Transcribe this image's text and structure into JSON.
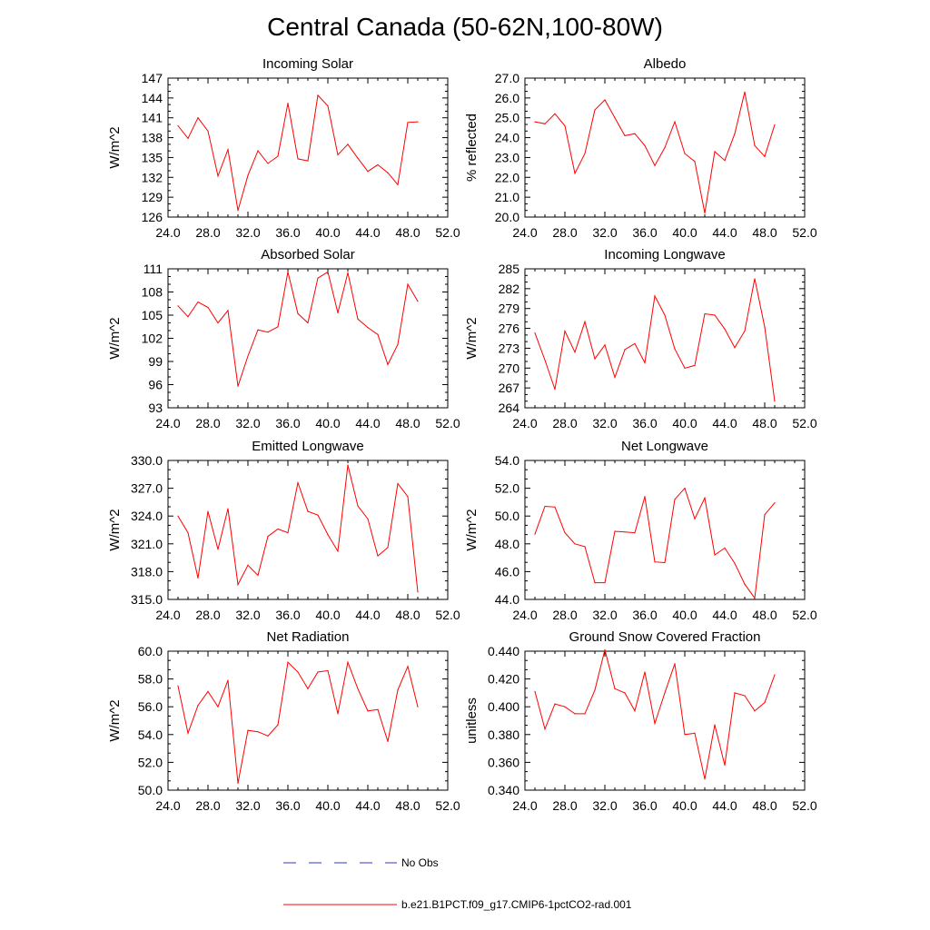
{
  "title": "Central Canada (50-62N,100-80W)",
  "legend": [
    {
      "label": "No Obs",
      "color": "#3333cc",
      "style": "dashed"
    },
    {
      "label": "b.e21.B1PCT.f09_g17.CMIP6-1pctCO2-rad.001",
      "color": "#ff0000",
      "style": "solid"
    }
  ],
  "chart_data": [
    {
      "type": "line",
      "title": "Incoming Solar",
      "ylabel": "W/m^2",
      "xlim": [
        24,
        52
      ],
      "ylim": [
        126,
        147
      ],
      "xticks": [
        "24.0",
        "28.0",
        "32.0",
        "36.0",
        "40.0",
        "44.0",
        "48.0",
        "52.0"
      ],
      "yticks": [
        "126",
        "129",
        "132",
        "135",
        "138",
        "141",
        "144",
        "147"
      ],
      "series": [
        {
          "color": "#ff0000",
          "x": [
            25,
            26,
            27,
            28,
            29,
            30,
            31,
            32,
            33,
            34,
            35,
            36,
            37,
            38,
            39,
            40,
            41,
            42,
            43,
            44,
            45,
            46,
            47,
            48,
            49
          ],
          "y": [
            139.8,
            137.9,
            141.0,
            139.0,
            132.2,
            136.2,
            127.0,
            132.3,
            136.0,
            134.1,
            135.2,
            143.2,
            134.8,
            134.5,
            144.4,
            142.8,
            135.4,
            137.0,
            134.9,
            132.9,
            133.9,
            132.7,
            130.9,
            140.3,
            140.4
          ]
        }
      ]
    },
    {
      "type": "line",
      "title": "Albedo",
      "ylabel": "% reflected",
      "xlim": [
        24,
        52
      ],
      "ylim": [
        20,
        27
      ],
      "xticks": [
        "24.0",
        "28.0",
        "32.0",
        "36.0",
        "40.0",
        "44.0",
        "48.0",
        "52.0"
      ],
      "yticks": [
        "20.0",
        "21.0",
        "22.0",
        "23.0",
        "24.0",
        "25.0",
        "26.0",
        "27.0"
      ],
      "series": [
        {
          "color": "#ff0000",
          "x": [
            25,
            26,
            27,
            28,
            29,
            30,
            31,
            32,
            33,
            34,
            35,
            36,
            37,
            38,
            39,
            40,
            41,
            42,
            43,
            44,
            45,
            46,
            47,
            48,
            49
          ],
          "y": [
            24.8,
            24.7,
            25.2,
            24.6,
            22.2,
            23.2,
            25.4,
            25.9,
            25.0,
            24.1,
            24.2,
            23.6,
            22.6,
            23.5,
            24.8,
            23.2,
            22.8,
            20.2,
            23.3,
            22.85,
            24.2,
            26.3,
            23.6,
            23.05,
            24.65
          ]
        }
      ]
    },
    {
      "type": "line",
      "title": "Absorbed Solar",
      "ylabel": "W/m^2",
      "xlim": [
        24,
        52
      ],
      "ylim": [
        93,
        111
      ],
      "xticks": [
        "24.0",
        "28.0",
        "32.0",
        "36.0",
        "40.0",
        "44.0",
        "48.0",
        "52.0"
      ],
      "yticks": [
        "93",
        "96",
        "99",
        "102",
        "105",
        "108",
        "111"
      ],
      "series": [
        {
          "color": "#ff0000",
          "x": [
            25,
            26,
            27,
            28,
            29,
            30,
            31,
            32,
            33,
            34,
            35,
            36,
            37,
            38,
            39,
            40,
            41,
            42,
            43,
            44,
            45,
            46,
            47,
            48,
            49
          ],
          "y": [
            106.2,
            104.8,
            106.7,
            106.0,
            104.0,
            105.6,
            95.8,
            99.7,
            103.1,
            102.8,
            103.5,
            110.6,
            105.2,
            104.0,
            109.8,
            110.6,
            105.3,
            110.5,
            104.5,
            103.4,
            102.5,
            98.6,
            101.2,
            109.0,
            106.8
          ]
        }
      ]
    },
    {
      "type": "line",
      "title": "Incoming Longwave",
      "ylabel": "W/m^2",
      "xlim": [
        24,
        52
      ],
      "ylim": [
        264,
        285
      ],
      "xticks": [
        "24.0",
        "28.0",
        "32.0",
        "36.0",
        "40.0",
        "44.0",
        "48.0",
        "52.0"
      ],
      "yticks": [
        "264",
        "267",
        "270",
        "273",
        "276",
        "279",
        "282",
        "285"
      ],
      "series": [
        {
          "color": "#ff0000",
          "x": [
            25,
            26,
            27,
            28,
            29,
            30,
            31,
            32,
            33,
            34,
            35,
            36,
            37,
            38,
            39,
            40,
            41,
            42,
            43,
            44,
            45,
            46,
            47,
            48,
            49
          ],
          "y": [
            275.3,
            271.2,
            266.8,
            275.6,
            272.4,
            277.0,
            271.4,
            273.5,
            268.6,
            272.8,
            273.7,
            270.8,
            280.9,
            278.0,
            272.9,
            270.0,
            270.4,
            278.2,
            278.0,
            275.9,
            273.1,
            275.6,
            283.5,
            276.2,
            265.0
          ]
        }
      ]
    },
    {
      "type": "line",
      "title": "Emitted Longwave",
      "ylabel": "W/m^2",
      "xlim": [
        24,
        52
      ],
      "ylim": [
        315,
        330
      ],
      "xticks": [
        "24.0",
        "28.0",
        "32.0",
        "36.0",
        "40.0",
        "44.0",
        "48.0",
        "52.0"
      ],
      "yticks": [
        "315.0",
        "318.0",
        "321.0",
        "324.0",
        "327.0",
        "330.0"
      ],
      "series": [
        {
          "color": "#ff0000",
          "x": [
            25,
            26,
            27,
            28,
            29,
            30,
            31,
            32,
            33,
            34,
            35,
            36,
            37,
            38,
            39,
            40,
            41,
            42,
            43,
            44,
            45,
            46,
            47,
            48,
            49
          ],
          "y": [
            324.0,
            322.2,
            317.3,
            324.5,
            320.4,
            324.8,
            316.6,
            318.7,
            317.6,
            321.8,
            322.6,
            322.2,
            327.6,
            324.5,
            324.1,
            322.0,
            320.2,
            329.5,
            325.1,
            323.7,
            319.7,
            320.6,
            327.5,
            326.1,
            315.8
          ]
        }
      ]
    },
    {
      "type": "line",
      "title": "Net Longwave",
      "ylabel": "W/m^2",
      "xlim": [
        24,
        52
      ],
      "ylim": [
        44,
        54
      ],
      "xticks": [
        "24.0",
        "28.0",
        "32.0",
        "36.0",
        "40.0",
        "44.0",
        "48.0",
        "52.0"
      ],
      "yticks": [
        "44.0",
        "46.0",
        "48.0",
        "50.0",
        "52.0",
        "54.0"
      ],
      "series": [
        {
          "color": "#ff0000",
          "x": [
            25,
            26,
            27,
            28,
            29,
            30,
            31,
            32,
            33,
            34,
            35,
            36,
            37,
            38,
            39,
            40,
            41,
            42,
            43,
            44,
            45,
            46,
            47,
            48,
            49
          ],
          "y": [
            48.7,
            50.7,
            50.65,
            48.8,
            48.0,
            47.8,
            45.2,
            45.2,
            48.9,
            48.85,
            48.8,
            51.4,
            46.7,
            46.65,
            51.2,
            52.0,
            49.8,
            51.3,
            47.2,
            47.7,
            46.6,
            45.1,
            44.1,
            50.1,
            50.95
          ]
        }
      ]
    },
    {
      "type": "line",
      "title": "Net Radiation",
      "ylabel": "W/m^2",
      "xlim": [
        24,
        52
      ],
      "ylim": [
        50,
        60
      ],
      "xticks": [
        "24.0",
        "28.0",
        "32.0",
        "36.0",
        "40.0",
        "44.0",
        "48.0",
        "52.0"
      ],
      "yticks": [
        "50.0",
        "52.0",
        "54.0",
        "56.0",
        "58.0",
        "60.0"
      ],
      "series": [
        {
          "color": "#ff0000",
          "x": [
            25,
            26,
            27,
            28,
            29,
            30,
            31,
            32,
            33,
            34,
            35,
            36,
            37,
            38,
            39,
            40,
            41,
            42,
            43,
            44,
            45,
            46,
            47,
            48,
            49
          ],
          "y": [
            57.5,
            54.1,
            56.1,
            57.1,
            56.0,
            57.9,
            50.5,
            54.3,
            54.2,
            53.9,
            54.7,
            59.2,
            58.5,
            57.3,
            58.5,
            58.6,
            55.5,
            59.2,
            57.3,
            55.7,
            55.8,
            53.5,
            57.2,
            58.9,
            56.0
          ]
        }
      ]
    },
    {
      "type": "line",
      "title": "Ground Snow Covered Fraction",
      "ylabel": "unitless",
      "xlim": [
        24,
        52
      ],
      "ylim": [
        0.34,
        0.44
      ],
      "xticks": [
        "24.0",
        "28.0",
        "32.0",
        "36.0",
        "40.0",
        "44.0",
        "48.0",
        "52.0"
      ],
      "yticks": [
        "0.340",
        "0.360",
        "0.380",
        "0.400",
        "0.420",
        "0.440"
      ],
      "series": [
        {
          "color": "#ff0000",
          "x": [
            25,
            26,
            27,
            28,
            29,
            30,
            31,
            32,
            33,
            34,
            35,
            36,
            37,
            38,
            39,
            40,
            41,
            42,
            43,
            44,
            45,
            46,
            47,
            48,
            49
          ],
          "y": [
            0.411,
            0.384,
            0.402,
            0.4,
            0.395,
            0.395,
            0.412,
            0.441,
            0.413,
            0.41,
            0.397,
            0.425,
            0.388,
            0.41,
            0.431,
            0.38,
            0.381,
            0.348,
            0.387,
            0.358,
            0.41,
            0.408,
            0.397,
            0.403,
            0.423
          ]
        }
      ]
    }
  ]
}
